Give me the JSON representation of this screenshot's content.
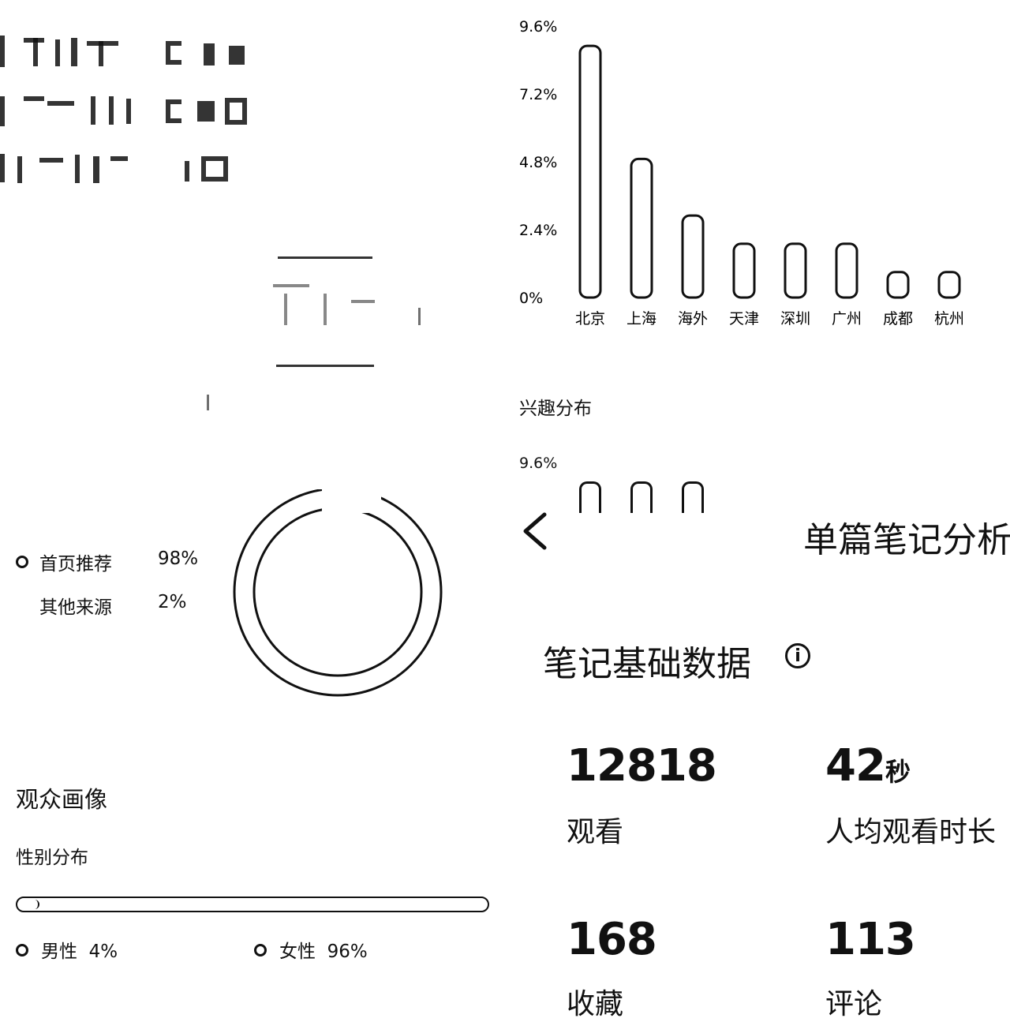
{
  "traffic_source": {
    "items": [
      {
        "label": "首页推荐",
        "value": "98%",
        "percent": 98
      },
      {
        "label": "其他来源",
        "value": "2%",
        "percent": 2
      }
    ]
  },
  "audience": {
    "title": "观众画像",
    "gender": {
      "title": "性别分布",
      "male": {
        "label": "男性",
        "value": "4%",
        "percent": 4
      },
      "female": {
        "label": "女性",
        "value": "96%",
        "percent": 96
      }
    }
  },
  "region_chart": {
    "chart_data": {
      "type": "bar",
      "categories": [
        "北京",
        "上海",
        "海外",
        "天津",
        "深圳",
        "广州",
        "成都",
        "杭州"
      ],
      "values": [
        8.9,
        4.9,
        2.9,
        1.9,
        1.9,
        1.9,
        0.9,
        0.9
      ],
      "yticks": [
        "0%",
        "2.4%",
        "4.8%",
        "7.2%",
        "9.6%"
      ],
      "ylim": [
        0,
        9.6
      ]
    }
  },
  "interest": {
    "title": "兴趣分布",
    "top_tick": "9.6%"
  },
  "note_panel": {
    "back_icon": "chevron-left-icon",
    "page_title": "单篇笔记分析",
    "section_title": "笔记基础数据",
    "info_icon": "i",
    "metrics": [
      {
        "value": "12818",
        "unit": "",
        "label": "观看"
      },
      {
        "value": "42",
        "unit": "秒",
        "label": "人均观看时长"
      },
      {
        "value": "168",
        "unit": "",
        "label": "收藏"
      },
      {
        "value": "113",
        "unit": "",
        "label": "评论"
      }
    ]
  }
}
